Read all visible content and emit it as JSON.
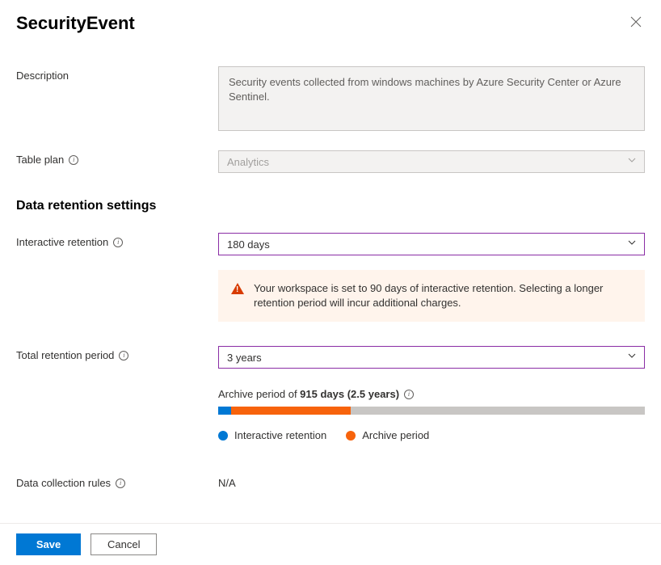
{
  "header": {
    "title": "SecurityEvent"
  },
  "fields": {
    "description_label": "Description",
    "description_value": "Security events collected from windows machines by Azure Security Center or Azure Sentinel.",
    "table_plan_label": "Table plan",
    "table_plan_value": "Analytics",
    "section_heading": "Data retention settings",
    "interactive_retention_label": "Interactive retention",
    "interactive_retention_value": "180 days",
    "warning_text": "Your workspace is set to 90 days of interactive retention. Selecting a longer retention period will incur additional charges.",
    "total_retention_label": "Total retention period",
    "total_retention_value": "3 years",
    "archive_prefix": "Archive period of ",
    "archive_bold": "915 days (2.5 years)",
    "data_collection_label": "Data collection rules",
    "data_collection_value": "N/A"
  },
  "bar": {
    "interactive_pct": 3,
    "archive_pct": 28,
    "interactive_color": "#0078d4",
    "archive_color": "#f7630c",
    "remainder_color": "#c8c6c4"
  },
  "legend": {
    "interactive": "Interactive retention",
    "archive": "Archive period"
  },
  "footer": {
    "save": "Save",
    "cancel": "Cancel"
  },
  "colors": {
    "select_border": "#8a2da5",
    "warning_bg": "#fff4ec"
  }
}
